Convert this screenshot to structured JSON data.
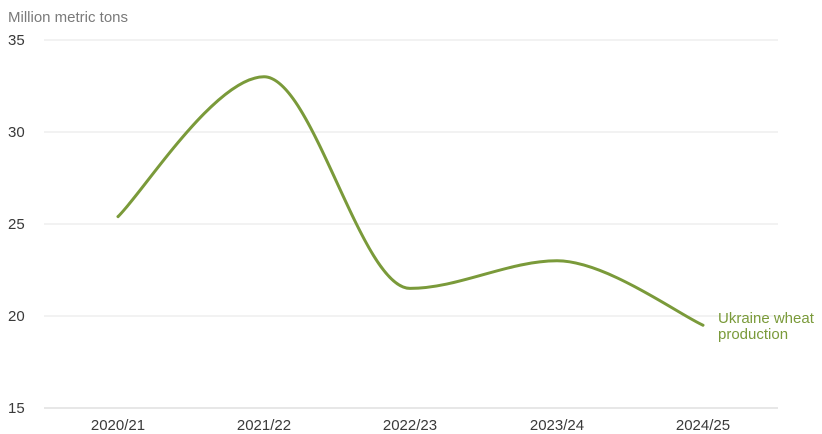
{
  "chart_data": {
    "type": "line",
    "title": "",
    "xlabel": "",
    "ylabel": "Million metric tons",
    "categories": [
      "2020/21",
      "2021/22",
      "2022/23",
      "2023/24",
      "2024/25"
    ],
    "ylim": [
      15,
      35
    ],
    "yticks": [
      15,
      20,
      25,
      30,
      35
    ],
    "grid": true,
    "series": [
      {
        "name": "Ukraine wheat production",
        "name_lines": [
          "Ukraine wheat",
          "production"
        ],
        "values": [
          25.4,
          33.0,
          21.5,
          23.0,
          19.5
        ],
        "color": "#7a9a3a"
      }
    ]
  }
}
